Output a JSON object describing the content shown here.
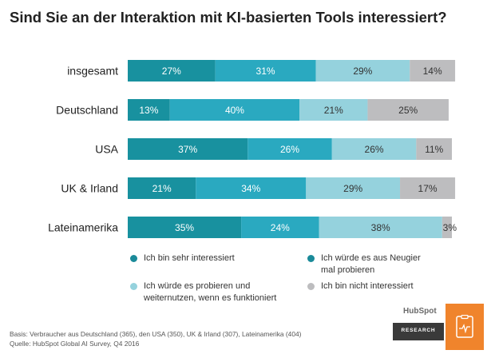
{
  "title": "Sind Sie an der Interaktion mit KI-basierten Tools interessiert?",
  "chart_data": {
    "type": "bar",
    "orientation": "horizontal",
    "stacked": true,
    "categories": [
      "insgesamt",
      "Deutschland",
      "USA",
      "UK & Irland",
      "Lateinamerika"
    ],
    "series": [
      {
        "name": "Ich bin sehr interessiert",
        "color": "#1a96a6",
        "values": [
          27,
          13,
          37,
          21,
          35
        ]
      },
      {
        "name": "Ich würde es aus Neugier mal probieren",
        "color": "#2aa9c0",
        "values": [
          31,
          40,
          26,
          34,
          24
        ]
      },
      {
        "name": "Ich würde es probieren und weiternutzen, wenn es funktioniert",
        "color": "#95d2dd",
        "values": [
          29,
          21,
          26,
          29,
          38
        ]
      },
      {
        "name": "Ich bin nicht interessiert",
        "color": "#bdbdbf",
        "values": [
          14,
          25,
          11,
          17,
          3
        ]
      }
    ],
    "value_suffix": "%",
    "xlim": [
      0,
      100
    ],
    "grid": false,
    "legend_placement": "bottom"
  },
  "legend": {
    "s1": "Ich bin sehr interessiert",
    "s2_line1": "Ich würde es aus Neugier",
    "s2_line2": "mal probieren",
    "s3_line1": "Ich würde es probieren und",
    "s3_line2": "weiternutzen, wenn es funktioniert",
    "s4": "Ich bin nicht interessiert"
  },
  "footnote": {
    "basis": "Basis: Verbraucher aus Deutschland (365), den USA (350), UK & Irland (307), Lateinamerika (404)",
    "source": "Quelle: HubSpot Global AI Survey, Q4 2016"
  },
  "brand": {
    "logo_text": "HubSpot",
    "tag": "RESEARCH",
    "accent": "#f0842c",
    "icon": "document-icon"
  }
}
